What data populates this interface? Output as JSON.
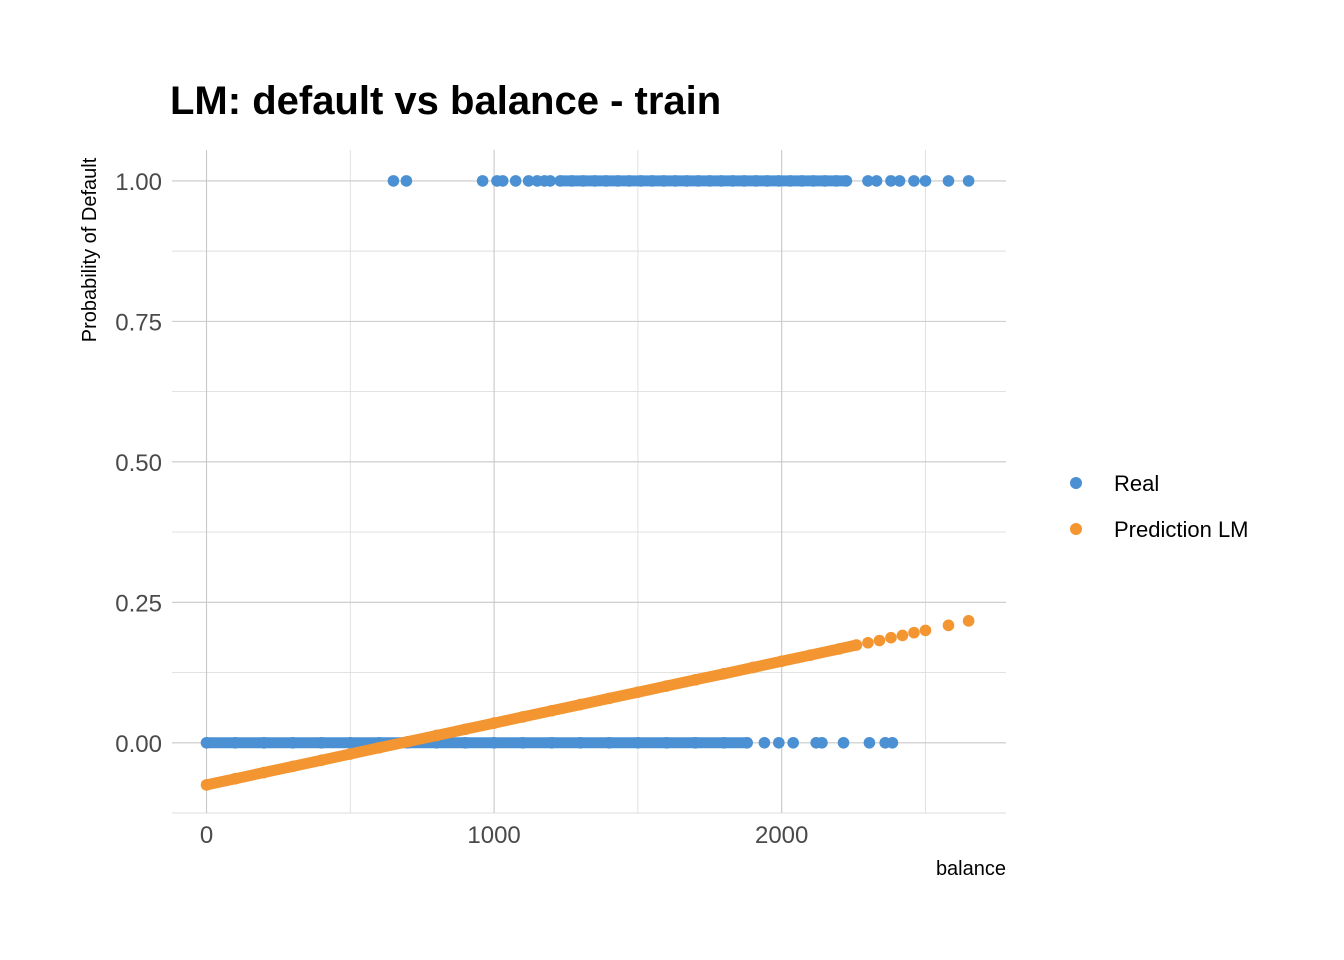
{
  "chart_data": {
    "type": "scatter",
    "title": "LM: default vs balance - train",
    "xlabel": "balance",
    "ylabel": "Probability of Default",
    "xlim": [
      -120,
      2780
    ],
    "ylim": [
      -0.125,
      1.055
    ],
    "x_ticks": [
      0,
      1000,
      2000
    ],
    "x_tick_labels": [
      "0",
      "1000",
      "2000"
    ],
    "y_ticks": [
      0,
      0.25,
      0.5,
      0.75,
      1.0
    ],
    "y_tick_labels": [
      "0.00",
      "0.25",
      "0.50",
      "0.75",
      "1.00"
    ],
    "grid": true,
    "legend_position": "right",
    "series": [
      {
        "name": "Real",
        "color": "#4a90d2",
        "points": [
          {
            "x": 650,
            "y": 1
          },
          {
            "x": 695,
            "y": 1
          },
          {
            "x": 960,
            "y": 1
          },
          {
            "x": 1010,
            "y": 1
          },
          {
            "x": 1030,
            "y": 1
          },
          {
            "x": 1075,
            "y": 1
          },
          {
            "x": 1120,
            "y": 1
          },
          {
            "x": 1150,
            "y": 1
          },
          {
            "x": 1175,
            "y": 1
          },
          {
            "x": 1195,
            "y": 1
          },
          {
            "x": 1230,
            "y": 1
          },
          {
            "x": 1270,
            "y": 1
          },
          {
            "x": 1310,
            "y": 1
          },
          {
            "x": 1350,
            "y": 1
          },
          {
            "x": 1390,
            "y": 1
          },
          {
            "x": 1430,
            "y": 1
          },
          {
            "x": 1470,
            "y": 1
          },
          {
            "x": 1510,
            "y": 1
          },
          {
            "x": 1550,
            "y": 1
          },
          {
            "x": 1590,
            "y": 1
          },
          {
            "x": 1630,
            "y": 1
          },
          {
            "x": 1670,
            "y": 1
          },
          {
            "x": 1710,
            "y": 1
          },
          {
            "x": 1750,
            "y": 1
          },
          {
            "x": 1790,
            "y": 1
          },
          {
            "x": 1830,
            "y": 1
          },
          {
            "x": 1870,
            "y": 1
          },
          {
            "x": 1910,
            "y": 1
          },
          {
            "x": 1950,
            "y": 1
          },
          {
            "x": 1990,
            "y": 1
          },
          {
            "x": 2030,
            "y": 1
          },
          {
            "x": 2070,
            "y": 1
          },
          {
            "x": 2110,
            "y": 1
          },
          {
            "x": 2150,
            "y": 1
          },
          {
            "x": 2190,
            "y": 1
          },
          {
            "x": 2225,
            "y": 1
          },
          {
            "x": 2300,
            "y": 1
          },
          {
            "x": 2330,
            "y": 1
          },
          {
            "x": 2380,
            "y": 1
          },
          {
            "x": 2410,
            "y": 1
          },
          {
            "x": 2460,
            "y": 1
          },
          {
            "x": 2500,
            "y": 1
          },
          {
            "x": 2580,
            "y": 1
          },
          {
            "x": 2650,
            "y": 1
          },
          {
            "x": 0,
            "y": 0
          },
          {
            "x": 100,
            "y": 0
          },
          {
            "x": 200,
            "y": 0
          },
          {
            "x": 300,
            "y": 0
          },
          {
            "x": 400,
            "y": 0
          },
          {
            "x": 500,
            "y": 0
          },
          {
            "x": 600,
            "y": 0
          },
          {
            "x": 700,
            "y": 0
          },
          {
            "x": 800,
            "y": 0
          },
          {
            "x": 900,
            "y": 0
          },
          {
            "x": 1000,
            "y": 0
          },
          {
            "x": 1100,
            "y": 0
          },
          {
            "x": 1200,
            "y": 0
          },
          {
            "x": 1300,
            "y": 0
          },
          {
            "x": 1400,
            "y": 0
          },
          {
            "x": 1500,
            "y": 0
          },
          {
            "x": 1600,
            "y": 0
          },
          {
            "x": 1700,
            "y": 0
          },
          {
            "x": 1800,
            "y": 0
          },
          {
            "x": 1880,
            "y": 0
          },
          {
            "x": 1940,
            "y": 0
          },
          {
            "x": 1990,
            "y": 0
          },
          {
            "x": 2040,
            "y": 0
          },
          {
            "x": 2120,
            "y": 0
          },
          {
            "x": 2140,
            "y": 0
          },
          {
            "x": 2215,
            "y": 0
          },
          {
            "x": 2305,
            "y": 0
          },
          {
            "x": 2360,
            "y": 0
          },
          {
            "x": 2385,
            "y": 0
          }
        ]
      },
      {
        "name": "Prediction LM",
        "color": "#f39530",
        "points": [
          {
            "x": 0,
            "y": -0.075
          },
          {
            "x": 100,
            "y": -0.064
          },
          {
            "x": 200,
            "y": -0.053
          },
          {
            "x": 300,
            "y": -0.042
          },
          {
            "x": 400,
            "y": -0.031
          },
          {
            "x": 500,
            "y": -0.02
          },
          {
            "x": 600,
            "y": -0.009
          },
          {
            "x": 700,
            "y": 0.002
          },
          {
            "x": 800,
            "y": 0.013
          },
          {
            "x": 900,
            "y": 0.024
          },
          {
            "x": 1000,
            "y": 0.035
          },
          {
            "x": 1100,
            "y": 0.046
          },
          {
            "x": 1200,
            "y": 0.057
          },
          {
            "x": 1300,
            "y": 0.068
          },
          {
            "x": 1400,
            "y": 0.079
          },
          {
            "x": 1500,
            "y": 0.09
          },
          {
            "x": 1600,
            "y": 0.101
          },
          {
            "x": 1700,
            "y": 0.112
          },
          {
            "x": 1800,
            "y": 0.123
          },
          {
            "x": 1900,
            "y": 0.134
          },
          {
            "x": 2000,
            "y": 0.145
          },
          {
            "x": 2100,
            "y": 0.156
          },
          {
            "x": 2200,
            "y": 0.167
          },
          {
            "x": 2260,
            "y": 0.174
          },
          {
            "x": 2300,
            "y": 0.178
          },
          {
            "x": 2340,
            "y": 0.182
          },
          {
            "x": 2380,
            "y": 0.187
          },
          {
            "x": 2420,
            "y": 0.191
          },
          {
            "x": 2460,
            "y": 0.196
          },
          {
            "x": 2500,
            "y": 0.2
          },
          {
            "x": 2580,
            "y": 0.209
          },
          {
            "x": 2650,
            "y": 0.217
          }
        ]
      }
    ]
  }
}
